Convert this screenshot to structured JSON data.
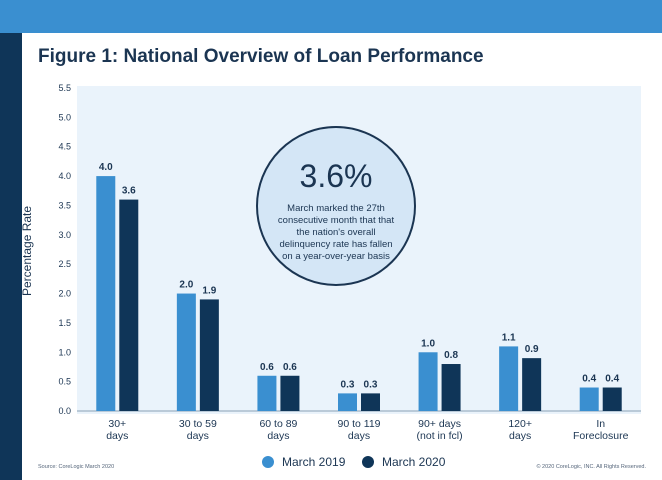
{
  "title": "Figure 1: National Overview of Loan Performance",
  "source": "Source: CoreLogic March 2020",
  "copyright": "© 2020 CoreLogic, INC. All Rights Reserved.",
  "callout": {
    "value": "3.6%",
    "text": "March marked the 27th consecutive month that that the nation's overall delinquency rate has fallen on a year-over-year basis"
  },
  "colors": {
    "march_2019": "#3a8fd0",
    "march_2020": "#0f3558",
    "plot_bg": "#eaf3fb"
  },
  "chart_data": {
    "type": "bar",
    "ylabel": "Percentage Rate",
    "ylim": [
      0,
      5.5
    ],
    "yticks": [
      "0.0",
      "0.5",
      "1.0",
      "1.5",
      "2.0",
      "2.5",
      "3.0",
      "3.5",
      "4.0",
      "4.5",
      "5.0",
      "5.5"
    ],
    "categories": [
      [
        "30+",
        "days"
      ],
      [
        "30 to 59",
        "days"
      ],
      [
        "60 to 89",
        "days"
      ],
      [
        "90 to 119",
        "days"
      ],
      [
        "90+ days",
        "(not in fcl)"
      ],
      [
        "120+",
        "days"
      ],
      [
        "In",
        "Foreclosure"
      ]
    ],
    "series": [
      {
        "name": "March 2019",
        "values": [
          4.0,
          2.0,
          0.6,
          0.3,
          1.0,
          1.1,
          0.4
        ],
        "labels": [
          "4.0",
          "2.0",
          "0.6",
          "0.3",
          "1.0",
          "1.1",
          "0.4"
        ]
      },
      {
        "name": "March 2020",
        "values": [
          3.6,
          1.9,
          0.6,
          0.3,
          0.8,
          0.9,
          0.4
        ],
        "labels": [
          "3.6",
          "1.9",
          "0.6",
          "0.3",
          "0.8",
          "0.9",
          "0.4"
        ]
      }
    ],
    "grid": false,
    "legend": "bottom-center"
  }
}
